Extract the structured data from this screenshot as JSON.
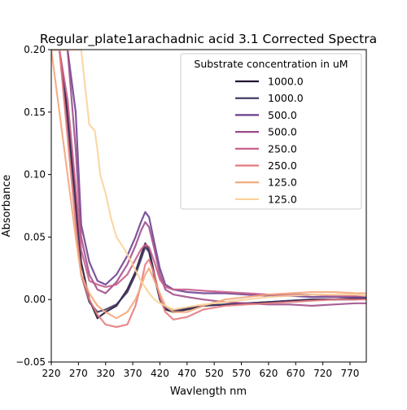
{
  "chart_data": {
    "type": "line",
    "title": "Regular_plate1arachadnic acid 3.1 Corrected Spectra",
    "xlabel": "Wavlength nm",
    "ylabel": "Absorbance",
    "xlim": [
      220,
      800
    ],
    "ylim": [
      -0.05,
      0.2
    ],
    "x_ticks": [
      220,
      270,
      320,
      370,
      420,
      470,
      520,
      570,
      620,
      670,
      720,
      770
    ],
    "y_ticks": [
      -0.05,
      0.0,
      0.05,
      0.1,
      0.15,
      0.2
    ],
    "y_tick_labels": [
      "−0.05",
      "0.00",
      "0.05",
      "0.10",
      "0.15",
      "0.20"
    ],
    "grid": false,
    "legend": {
      "title": "Substrate concentration in uM",
      "placement": "upper right"
    },
    "series": [
      {
        "name": "1000.0",
        "color": "#221331",
        "x": [
          220,
          235,
          250,
          265,
          275,
          290,
          305,
          320,
          340,
          360,
          375,
          385,
          393,
          400,
          410,
          420,
          430,
          445,
          470,
          500,
          540,
          580,
          620,
          660,
          700,
          740,
          780,
          800
        ],
        "y": [
          0.2,
          0.2,
          0.15,
          0.08,
          0.03,
          0.0,
          -0.015,
          -0.01,
          -0.005,
          0.008,
          0.022,
          0.035,
          0.045,
          0.04,
          0.02,
          0.0,
          -0.008,
          -0.01,
          -0.008,
          -0.005,
          -0.004,
          -0.003,
          -0.002,
          -0.001,
          0.0,
          0.0,
          0.001,
          0.001
        ]
      },
      {
        "name": "1000.0",
        "color": "#3b2f5b",
        "x": [
          220,
          235,
          250,
          265,
          275,
          290,
          305,
          320,
          340,
          360,
          375,
          385,
          393,
          400,
          410,
          420,
          430,
          445,
          470,
          500,
          540,
          580,
          620,
          660,
          700,
          740,
          780,
          800
        ],
        "y": [
          0.2,
          0.2,
          0.14,
          0.07,
          0.02,
          -0.002,
          -0.01,
          -0.008,
          -0.004,
          0.006,
          0.02,
          0.032,
          0.042,
          0.038,
          0.018,
          0.0,
          -0.007,
          -0.009,
          -0.007,
          -0.005,
          -0.004,
          -0.003,
          -0.002,
          -0.001,
          0.0,
          0.0,
          0.0,
          0.001
        ]
      },
      {
        "name": "500.0",
        "color": "#6a3d8f",
        "x": [
          220,
          235,
          250,
          265,
          275,
          290,
          305,
          320,
          340,
          360,
          375,
          385,
          393,
          400,
          410,
          420,
          430,
          445,
          470,
          500,
          540,
          580,
          620,
          660,
          700,
          740,
          780,
          800
        ],
        "y": [
          0.2,
          0.2,
          0.2,
          0.15,
          0.06,
          0.03,
          0.015,
          0.012,
          0.02,
          0.035,
          0.05,
          0.062,
          0.07,
          0.066,
          0.045,
          0.025,
          0.012,
          0.008,
          0.006,
          0.005,
          0.005,
          0.004,
          0.003,
          0.003,
          0.002,
          0.002,
          0.002,
          0.002
        ]
      },
      {
        "name": "500.0",
        "color": "#9d4b87",
        "x": [
          220,
          235,
          250,
          265,
          275,
          290,
          305,
          320,
          340,
          360,
          375,
          385,
          393,
          400,
          410,
          420,
          430,
          445,
          470,
          500,
          540,
          580,
          620,
          660,
          700,
          740,
          780,
          800
        ],
        "y": [
          0.2,
          0.2,
          0.2,
          0.12,
          0.05,
          0.02,
          0.008,
          0.005,
          0.014,
          0.028,
          0.043,
          0.055,
          0.062,
          0.058,
          0.04,
          0.02,
          0.008,
          0.004,
          0.002,
          0.0,
          -0.002,
          -0.003,
          -0.004,
          -0.004,
          -0.005,
          -0.004,
          -0.003,
          -0.003
        ]
      },
      {
        "name": "250.0",
        "color": "#c55a87",
        "x": [
          220,
          235,
          250,
          265,
          275,
          290,
          305,
          320,
          340,
          360,
          375,
          385,
          393,
          400,
          410,
          420,
          430,
          445,
          470,
          500,
          540,
          580,
          620,
          660,
          700,
          740,
          780,
          800
        ],
        "y": [
          0.2,
          0.2,
          0.16,
          0.09,
          0.04,
          0.015,
          0.012,
          0.01,
          0.012,
          0.02,
          0.032,
          0.04,
          0.044,
          0.042,
          0.03,
          0.016,
          0.01,
          0.008,
          0.008,
          0.007,
          0.006,
          0.005,
          0.004,
          0.004,
          0.004,
          0.003,
          0.003,
          0.003
        ]
      },
      {
        "name": "250.0",
        "color": "#e57a7e",
        "x": [
          220,
          235,
          250,
          265,
          275,
          290,
          305,
          320,
          340,
          360,
          375,
          385,
          393,
          400,
          410,
          420,
          430,
          445,
          470,
          500,
          540,
          580,
          620,
          660,
          700,
          740,
          780,
          800
        ],
        "y": [
          0.2,
          0.2,
          0.13,
          0.06,
          0.02,
          0.0,
          -0.012,
          -0.02,
          -0.022,
          -0.02,
          -0.005,
          0.012,
          0.028,
          0.032,
          0.02,
          0.002,
          -0.01,
          -0.016,
          -0.014,
          -0.008,
          -0.005,
          -0.004,
          -0.003,
          -0.002,
          -0.001,
          0.0,
          0.0,
          0.0
        ]
      },
      {
        "name": "125.0",
        "color": "#f3a67a",
        "x": [
          220,
          235,
          250,
          265,
          275,
          290,
          305,
          320,
          340,
          360,
          375,
          385,
          393,
          400,
          410,
          420,
          430,
          445,
          470,
          500,
          540,
          580,
          620,
          660,
          700,
          740,
          780,
          800
        ],
        "y": [
          0.2,
          0.15,
          0.1,
          0.05,
          0.02,
          0.005,
          -0.005,
          -0.01,
          -0.015,
          -0.01,
          0.0,
          0.01,
          0.02,
          0.025,
          0.015,
          0.005,
          -0.005,
          -0.01,
          -0.01,
          -0.005,
          0.0,
          0.002,
          0.004,
          0.005,
          0.006,
          0.006,
          0.005,
          0.005
        ]
      },
      {
        "name": "125.0",
        "color": "#fbd39b",
        "x": [
          220,
          235,
          250,
          265,
          275,
          290,
          300,
          305,
          310,
          320,
          330,
          340,
          355,
          370,
          385,
          400,
          410,
          420,
          430,
          445,
          470,
          500,
          540,
          580,
          620,
          660,
          700,
          740,
          780,
          800
        ],
        "y": [
          0.2,
          0.2,
          0.2,
          0.2,
          0.2,
          0.14,
          0.135,
          0.12,
          0.1,
          0.085,
          0.065,
          0.05,
          0.04,
          0.028,
          0.015,
          0.005,
          0.0,
          -0.003,
          -0.005,
          -0.008,
          -0.006,
          -0.004,
          -0.002,
          0.0,
          0.002,
          0.003,
          0.004,
          0.004,
          0.004,
          0.003
        ]
      }
    ]
  }
}
